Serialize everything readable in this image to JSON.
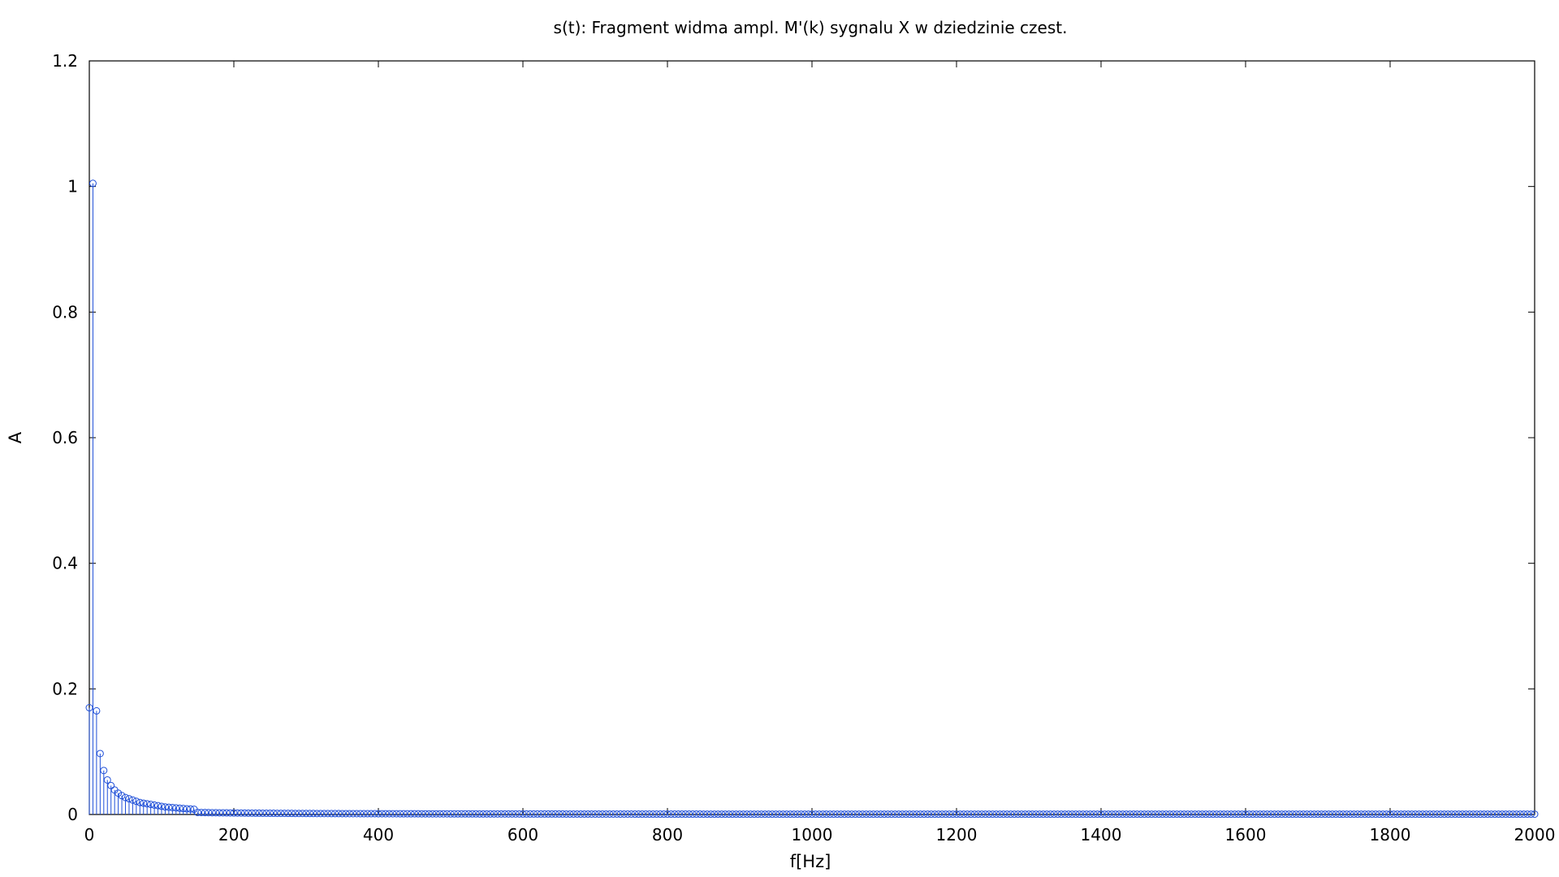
{
  "chart_data": {
    "type": "stem",
    "title": "s(t): Fragment widma ampl. M'(k) sygnalu X w dziedzinie czest.",
    "xlabel": "f[Hz]",
    "ylabel": "A",
    "xlim": [
      0,
      2000
    ],
    "ylim": [
      0,
      1.2
    ],
    "x_ticks": [
      "0",
      "200",
      "400",
      "600",
      "800",
      "1000",
      "1200",
      "1400",
      "1600",
      "1800",
      "2000"
    ],
    "y_ticks": [
      "0",
      "0.2",
      "0.4",
      "0.6",
      "0.8",
      "1",
      "1.2"
    ],
    "grid": false,
    "marker": "circle",
    "series_color": "#1f4fd8",
    "x_step_hz": 5,
    "values_first_30": [
      0.17,
      1.005,
      0.165,
      0.097,
      0.07,
      0.055,
      0.046,
      0.039,
      0.034,
      0.03,
      0.027,
      0.025,
      0.023,
      0.021,
      0.019,
      0.018,
      0.017,
      0.016,
      0.015,
      0.014,
      0.013,
      0.012,
      0.0115,
      0.011,
      0.0105,
      0.01,
      0.0095,
      0.009,
      0.0087,
      0.0083
    ],
    "tail_decay": "A(f) ≈ 0.48 / f (f in Hz) from 150 Hz to 2000 Hz"
  }
}
